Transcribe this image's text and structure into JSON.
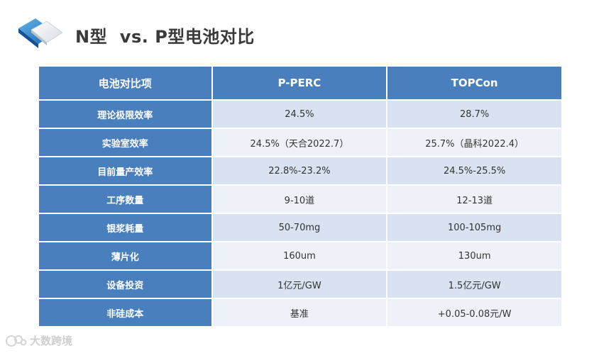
{
  "header": {
    "title": "N型  vs. P型电池对比"
  },
  "colors": {
    "header_blue": "#4a7fbe",
    "row_light": "#d9e2f1",
    "row_lighter": "#eef2f8"
  },
  "table": {
    "columns": [
      "电池对比项",
      "P-PERC",
      "TOPCon"
    ],
    "rows": [
      {
        "label": "理论极限效率",
        "p_perc": "24.5%",
        "topcon": "28.7%"
      },
      {
        "label": "实验室效率",
        "p_perc": "24.5%（天合2022.7）",
        "topcon": "25.7%（晶科2022.4）"
      },
      {
        "label": "目前量产效率",
        "p_perc": "22.8%-23.2%",
        "topcon": "24.5%-25.5%"
      },
      {
        "label": "工序数量",
        "p_perc": "9-10道",
        "topcon": "12-13道"
      },
      {
        "label": "银浆耗量",
        "p_perc": "50-70mg",
        "topcon": "100-105mg"
      },
      {
        "label": "薄片化",
        "p_perc": "160um",
        "topcon": "130um"
      },
      {
        "label": "设备投资",
        "p_perc": "1亿元/GW",
        "topcon": "1.5亿元/GW"
      },
      {
        "label": "非硅成本",
        "p_perc": "基准",
        "topcon": "+0.05-0.08元/W"
      }
    ]
  },
  "watermark": {
    "text": "大数跨境",
    "icon": "logo-mark-icon"
  }
}
